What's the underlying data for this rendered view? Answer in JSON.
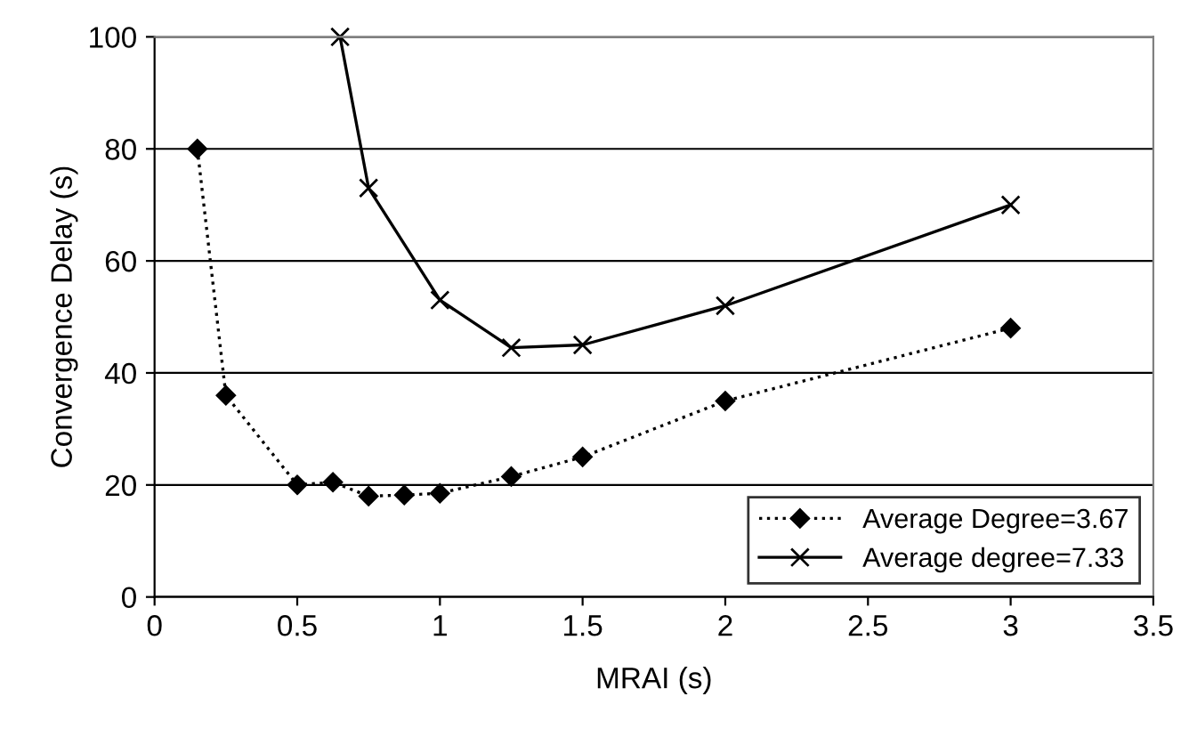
{
  "chart_data": {
    "type": "line",
    "xlabel": "MRAI (s)",
    "ylabel": "Convergence Delay (s)",
    "xlim": [
      0,
      3.5
    ],
    "xticks": [
      0,
      0.5,
      1,
      1.5,
      2,
      2.5,
      3,
      3.5
    ],
    "ylim": [
      0,
      100
    ],
    "yticks": [
      0,
      20,
      40,
      60,
      80,
      100
    ],
    "grid": "y",
    "legend": "bottom right",
    "series": [
      {
        "name": "Average Degree=3.67",
        "color": "#000000",
        "marker": "diamond",
        "line_style": "dotted",
        "x": [
          0.15,
          0.25,
          0.5,
          0.625,
          0.75,
          0.875,
          1,
          1.25,
          1.5,
          2,
          3
        ],
        "values": [
          80,
          36,
          20,
          20.5,
          18,
          18.2,
          18.5,
          21.5,
          25,
          35,
          48
        ]
      },
      {
        "name": "Average degree=7.33",
        "color": "#000000",
        "marker": "cross",
        "line_style": "solid",
        "x": [
          0.65,
          0.75,
          1,
          1.25,
          1.5,
          2,
          3
        ],
        "values": [
          100,
          73,
          53,
          44.5,
          45,
          52,
          70
        ]
      }
    ]
  }
}
